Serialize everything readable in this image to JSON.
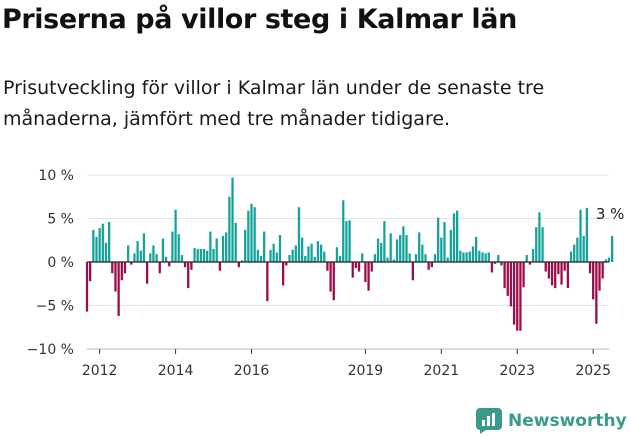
{
  "title": "Priserna på villor steg i Kalmar län",
  "subtitle": "Prisutveckling för villor i Kalmar län under de senaste tre månaderna, jämfört med tre månader tidigare.",
  "brand": {
    "name": "Newsworthy",
    "logo_icon": "newsworthy-logo-icon"
  },
  "colors": {
    "positive": "#14a39a",
    "negative": "#9b0c49",
    "axis": "#222222",
    "grid": "#e3e3e3"
  },
  "chart_data": {
    "type": "bar",
    "x_start": "2011-09",
    "x_step": "month",
    "xlim": [
      "2011-09",
      "2025-06"
    ],
    "x_ticks": [
      "2012",
      "2014",
      "2016",
      "2019",
      "2021",
      "2023",
      "2025"
    ],
    "ylim": [
      -10,
      10
    ],
    "y_ticks": [
      "10 %",
      "5 %",
      "0 %",
      "−5 %",
      "−10 %"
    ],
    "y_tick_values": [
      10,
      5,
      0,
      -5,
      -10
    ],
    "grid": true,
    "annotation": {
      "text": "3 %",
      "value": 3
    },
    "values": [
      -5.7,
      -2.2,
      3.7,
      2.9,
      3.9,
      4.4,
      2.2,
      4.6,
      -1.3,
      -3.4,
      -6.2,
      -2.1,
      -1.3,
      1.9,
      -0.3,
      1.0,
      2.4,
      1.3,
      3.3,
      -2.5,
      1.0,
      1.9,
      0.9,
      -1.3,
      2.7,
      0.6,
      -0.5,
      3.5,
      6.0,
      3.2,
      0.8,
      -0.6,
      -3.0,
      -0.9,
      1.6,
      1.5,
      1.5,
      1.5,
      1.3,
      3.5,
      1.5,
      2.7,
      -1.0,
      3.0,
      3.4,
      7.5,
      9.7,
      4.5,
      -0.6,
      0.2,
      3.7,
      5.9,
      6.7,
      6.3,
      1.4,
      0.7,
      3.5,
      -4.5,
      1.4,
      2.1,
      1.1,
      3.1,
      -2.7,
      -0.4,
      0.8,
      1.4,
      1.9,
      6.3,
      2.8,
      0.7,
      1.8,
      2.1,
      0.6,
      2.4,
      2.0,
      1.2,
      -1.0,
      -3.4,
      -4.4,
      1.7,
      0.7,
      7.1,
      4.7,
      4.8,
      -1.8,
      -0.7,
      -1.1,
      1.0,
      -2.3,
      -3.3,
      -1.1,
      0.9,
      2.7,
      2.2,
      4.7,
      0.5,
      3.3,
      0.3,
      2.6,
      3.1,
      4.1,
      3.1,
      1.0,
      -2.1,
      0.9,
      3.4,
      2.0,
      0.9,
      -0.9,
      -0.6,
      0.9,
      5.1,
      2.8,
      4.6,
      0.5,
      3.7,
      5.6,
      5.9,
      1.3,
      1.1,
      1.1,
      1.2,
      1.8,
      2.9,
      1.3,
      1.1,
      1.0,
      1.1,
      -1.2,
      -0.2,
      0.8,
      -0.4,
      -3.0,
      -3.9,
      -5.1,
      -7.2,
      -7.9,
      -7.9,
      -2.9,
      0.8,
      -0.3,
      1.5,
      4.0,
      5.7,
      4.0,
      -1.1,
      -1.9,
      -2.7,
      -3.0,
      -1.4,
      -2.6,
      -1.0,
      -3.0,
      1.2,
      2.0,
      2.8,
      6.0,
      3.0,
      6.2,
      -1.3,
      -4.3,
      -7.1,
      -3.3,
      -1.9,
      0.3,
      0.5,
      3.0
    ]
  }
}
